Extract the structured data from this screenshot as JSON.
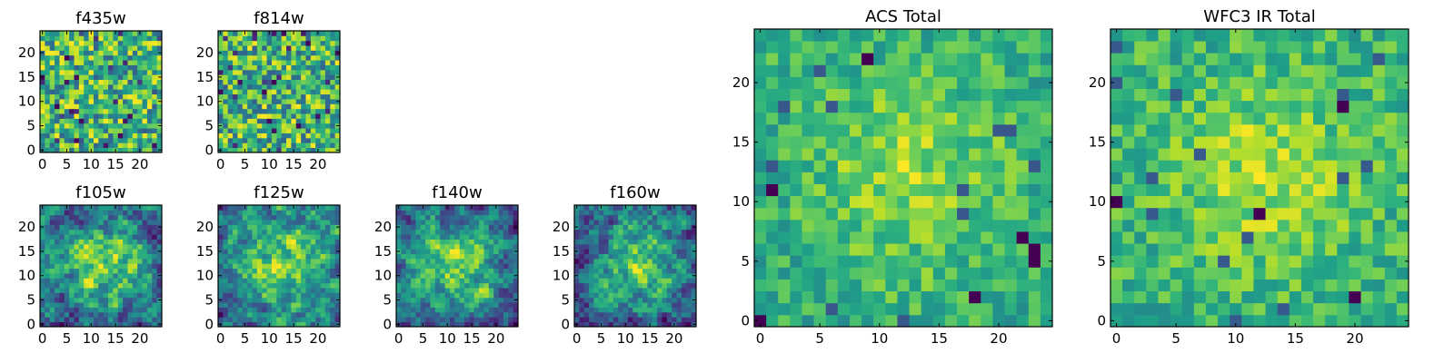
{
  "chart_data": [
    {
      "type": "heatmap",
      "title": "f435w",
      "grid_size": 25,
      "colormap": "viridis",
      "xticks": [
        "0",
        "5",
        "10",
        "15",
        "20"
      ],
      "yticks": [
        "0",
        "5",
        "10",
        "15",
        "20"
      ],
      "xlim": [
        0,
        24
      ],
      "ylim": [
        0,
        24
      ],
      "grid": false,
      "seed": 11,
      "pattern": "noise"
    },
    {
      "type": "heatmap",
      "title": "f814w",
      "grid_size": 25,
      "colormap": "viridis",
      "xticks": [
        "0",
        "5",
        "10",
        "15",
        "20"
      ],
      "yticks": [
        "0",
        "5",
        "10",
        "15",
        "20"
      ],
      "xlim": [
        0,
        24
      ],
      "ylim": [
        0,
        24
      ],
      "grid": false,
      "seed": 23,
      "pattern": "noise"
    },
    {
      "type": "heatmap",
      "title": "f105w",
      "grid_size": 25,
      "colormap": "viridis",
      "xticks": [
        "0",
        "5",
        "10",
        "15",
        "20"
      ],
      "yticks": [
        "0",
        "5",
        "10",
        "15",
        "20"
      ],
      "xlim": [
        0,
        24
      ],
      "ylim": [
        0,
        24
      ],
      "grid": false,
      "seed": 37,
      "pattern": "smooth"
    },
    {
      "type": "heatmap",
      "title": "f125w",
      "grid_size": 25,
      "colormap": "viridis",
      "xticks": [
        "0",
        "5",
        "10",
        "15",
        "20"
      ],
      "yticks": [
        "0",
        "5",
        "10",
        "15",
        "20"
      ],
      "xlim": [
        0,
        24
      ],
      "ylim": [
        0,
        24
      ],
      "grid": false,
      "seed": 41,
      "pattern": "smooth"
    },
    {
      "type": "heatmap",
      "title": "f140w",
      "grid_size": 25,
      "colormap": "viridis",
      "xticks": [
        "0",
        "5",
        "10",
        "15",
        "20"
      ],
      "yticks": [
        "0",
        "5",
        "10",
        "15",
        "20"
      ],
      "xlim": [
        0,
        24
      ],
      "ylim": [
        0,
        24
      ],
      "grid": false,
      "seed": 53,
      "pattern": "smooth"
    },
    {
      "type": "heatmap",
      "title": "f160w",
      "grid_size": 25,
      "colormap": "viridis",
      "xticks": [
        "0",
        "5",
        "10",
        "15",
        "20"
      ],
      "yticks": [
        "0",
        "5",
        "10",
        "15",
        "20"
      ],
      "xlim": [
        0,
        24
      ],
      "ylim": [
        0,
        24
      ],
      "grid": false,
      "seed": 67,
      "pattern": "smooth"
    },
    {
      "type": "heatmap",
      "title": "ACS Total",
      "grid_size": 25,
      "colormap": "viridis",
      "xticks": [
        "0",
        "5",
        "10",
        "15",
        "20"
      ],
      "yticks": [
        "0",
        "5",
        "10",
        "15",
        "20"
      ],
      "xlim": [
        0,
        24
      ],
      "ylim": [
        0,
        24
      ],
      "grid": false,
      "seed": 79,
      "pattern": "total"
    },
    {
      "type": "heatmap",
      "title": "WFC3 IR Total",
      "grid_size": 25,
      "colormap": "viridis",
      "xticks": [
        "0",
        "5",
        "10",
        "15",
        "20"
      ],
      "yticks": [
        "0",
        "5",
        "10",
        "15",
        "20"
      ],
      "xlim": [
        0,
        24
      ],
      "ylim": [
        0,
        24
      ],
      "grid": false,
      "seed": 97,
      "pattern": "total"
    }
  ]
}
